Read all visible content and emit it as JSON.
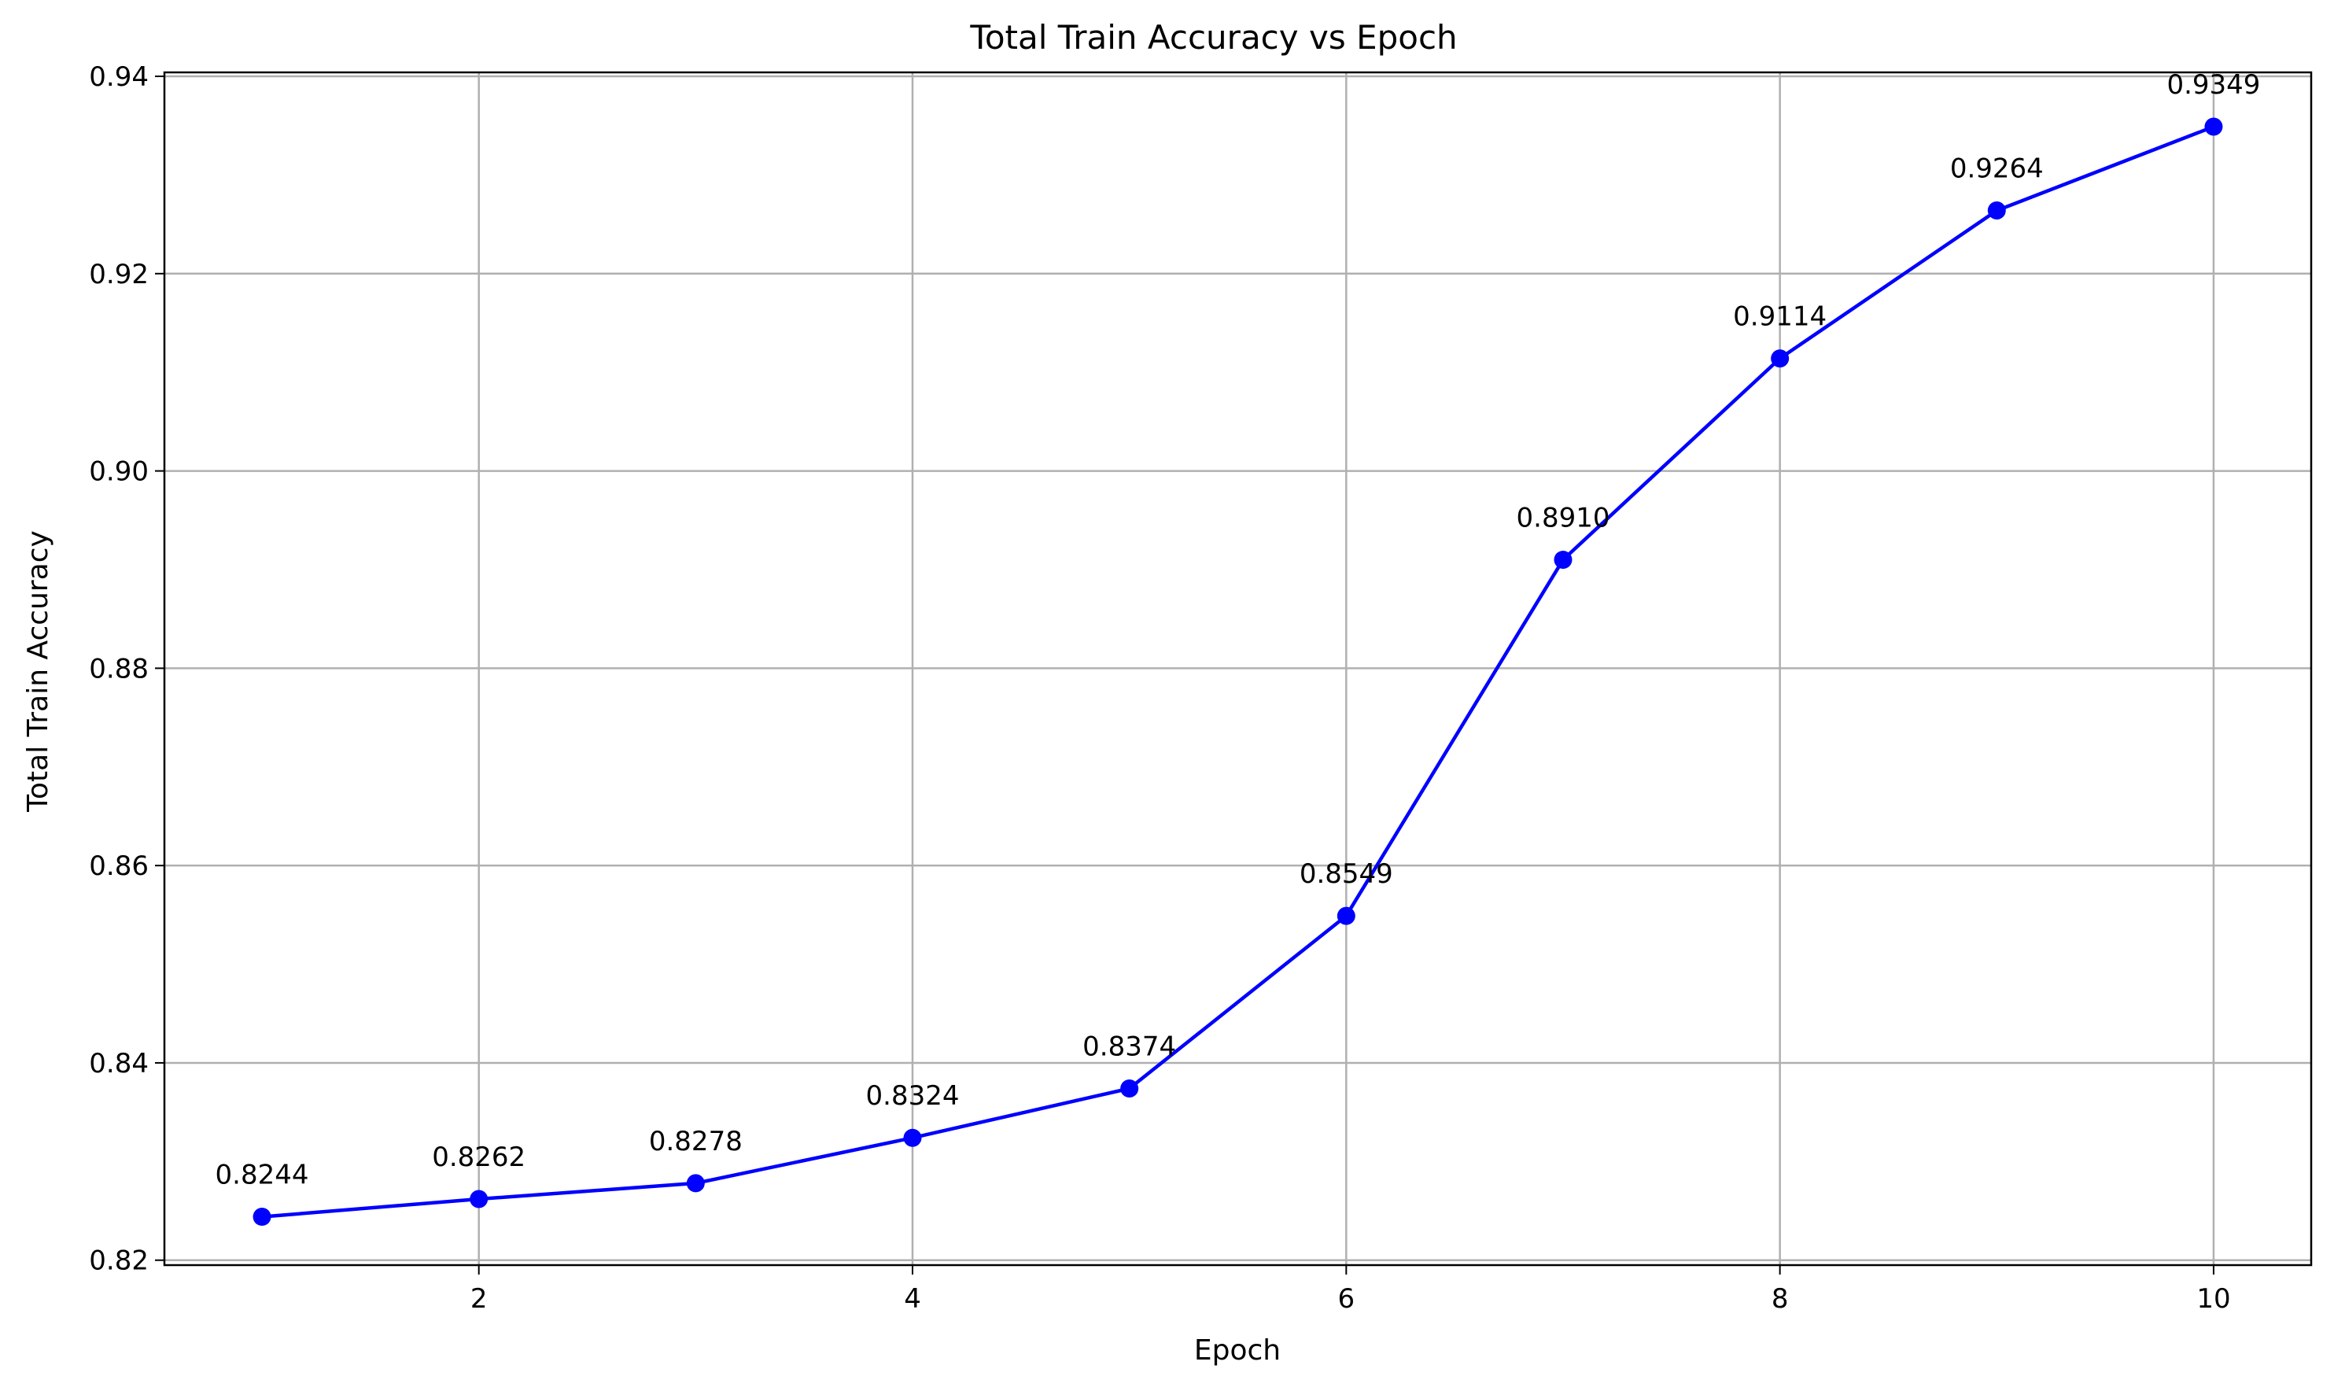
{
  "chart_data": {
    "type": "line",
    "title": "Total Train Accuracy vs Epoch",
    "xlabel": "Epoch",
    "ylabel": "Total Train Accuracy",
    "x": [
      1,
      2,
      3,
      4,
      5,
      6,
      7,
      8,
      9,
      10
    ],
    "series": [
      {
        "values": [
          0.8244,
          0.8262,
          0.8278,
          0.8324,
          0.8374,
          0.8549,
          0.891,
          0.9114,
          0.9264,
          0.9349
        ],
        "labels": [
          "0.8244",
          "0.8262",
          "0.8278",
          "0.8324",
          "0.8374",
          "0.8549",
          "0.8910",
          "0.9114",
          "0.9264",
          "0.9349"
        ],
        "color": "#0000ff",
        "marker": "circle"
      }
    ],
    "xlim": [
      0.55,
      10.45
    ],
    "ylim": [
      0.8195,
      0.9404
    ],
    "xticks": [
      2,
      4,
      6,
      8,
      10
    ],
    "xtick_labels": [
      "2",
      "4",
      "6",
      "8",
      "10"
    ],
    "yticks": [
      0.82,
      0.84,
      0.86,
      0.88,
      0.9,
      0.92,
      0.94
    ],
    "ytick_labels": [
      "0.82",
      "0.84",
      "0.86",
      "0.88",
      "0.90",
      "0.92",
      "0.94"
    ],
    "grid": true,
    "legend": false
  }
}
